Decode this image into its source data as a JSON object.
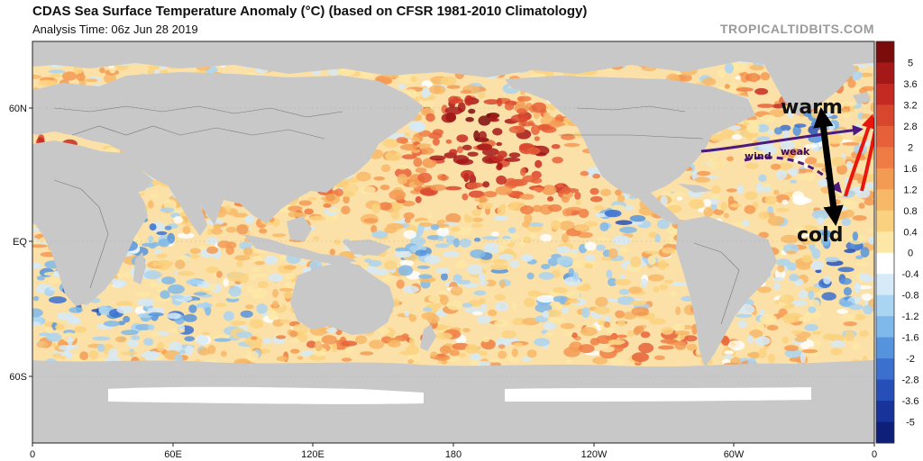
{
  "header": {
    "title": "CDAS Sea Surface Temperature Anomaly (°C) (based on CFSR 1981-2010 Climatology)",
    "analysis_time": "Analysis Time: 06z Jun 28 2019",
    "brand": "TROPICALTIDBITS.COM"
  },
  "axes": {
    "lat_labels": [
      "60N",
      "EQ",
      "60S"
    ],
    "lon_labels": [
      "0",
      "60E",
      "120E",
      "180",
      "120W",
      "60W",
      "0"
    ]
  },
  "colorbar": {
    "labels": [
      "5",
      "3.6",
      "3.2",
      "2.8",
      "2",
      "1.6",
      "1.2",
      "0.8",
      "0.4",
      "0",
      "-0.4",
      "-0.8",
      "-1.2",
      "-1.6",
      "-2",
      "-2.8",
      "-3.6",
      "-5"
    ],
    "colors": [
      "#7a0c0c",
      "#a51818",
      "#c42a22",
      "#d9462e",
      "#e6613a",
      "#ef7c44",
      "#f39a53",
      "#f7b868",
      "#fad27f",
      "#fde7a6",
      "#ffffff",
      "#d6eaf8",
      "#a9d4f2",
      "#7fb8ea",
      "#5594dd",
      "#3b70cf",
      "#2650b8",
      "#18339a",
      "#0d1f78"
    ]
  },
  "annotations": {
    "warm": "warm",
    "cold": "cold",
    "wind": "wind",
    "weak": "weak"
  },
  "colors": {
    "land": "#c8c8c8",
    "ocean_base": "#fbe0a8",
    "arrow_red": "#e8160c",
    "arrow_purple": "#4b1a7a"
  }
}
